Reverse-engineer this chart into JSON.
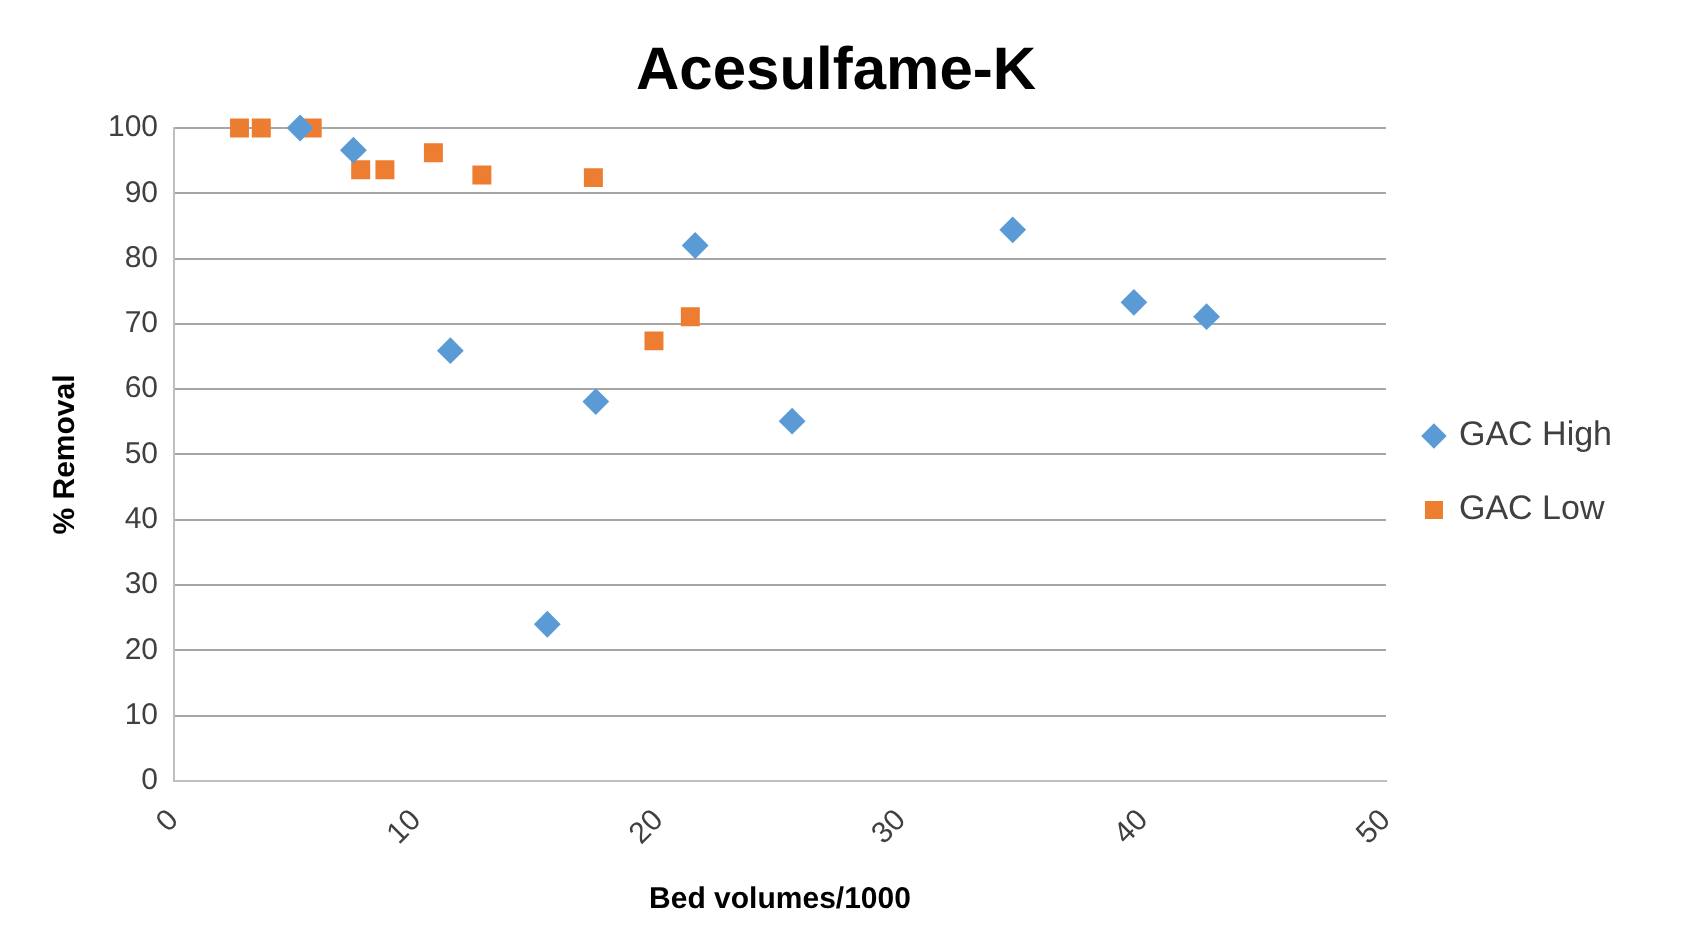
{
  "chart_data": {
    "type": "scatter",
    "title": "Acesulfame-K",
    "xlabel": "Bed volumes/1000",
    "ylabel": "% Removal",
    "xlim": [
      0,
      50
    ],
    "xticks": [
      0,
      10,
      20,
      30,
      40,
      50
    ],
    "ylim": [
      0,
      100
    ],
    "yticks": [
      0,
      10,
      20,
      30,
      40,
      50,
      60,
      70,
      80,
      90,
      100
    ],
    "grid": "y",
    "legend": "right",
    "series": [
      {
        "name": "GAC High",
        "color": "#5b9bd5",
        "marker": "diamond",
        "x": [
          5.2,
          7.4,
          11.4,
          15.4,
          17.4,
          21.5,
          25.5,
          34.6,
          39.6,
          42.6
        ],
        "values": [
          100,
          96.6,
          65.9,
          24,
          58.1,
          82,
          55.1,
          84.4,
          73.3,
          71.1
        ]
      },
      {
        "name": "GAC Low",
        "color": "#ed7d31",
        "marker": "square",
        "x": [
          2.7,
          3.6,
          5.7,
          7.7,
          8.7,
          10.7,
          12.7,
          17.3,
          19.8,
          21.3
        ],
        "values": [
          100,
          100,
          100,
          93.6,
          93.6,
          96.2,
          92.8,
          92.4,
          67.4,
          71.1
        ]
      }
    ]
  }
}
